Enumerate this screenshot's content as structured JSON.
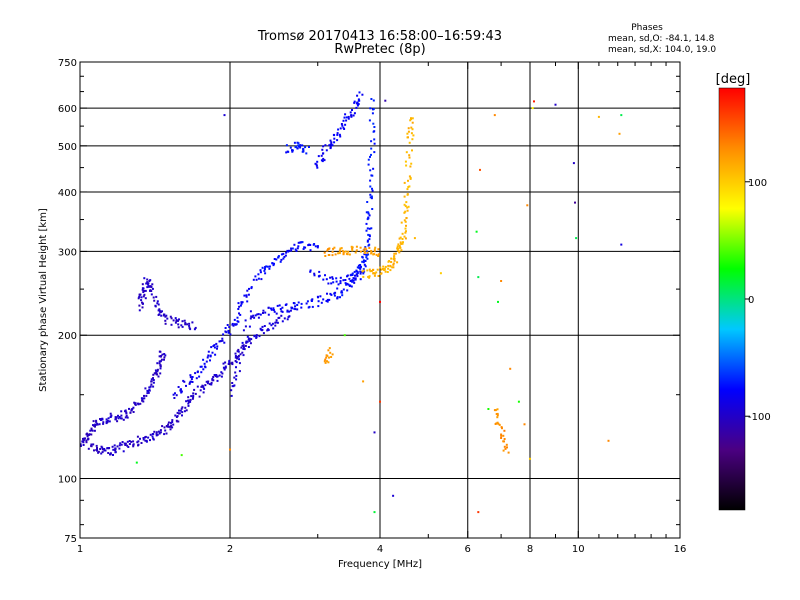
{
  "chart_data": {
    "type": "scatter",
    "title": "Tromsø 20170413 16:58:00–16:59:43",
    "subtitle": "RwPretec (8p)",
    "xlabel": "Frequency [MHz]",
    "ylabel": "Stationary phase Virtual Height [km]",
    "x_scale": "log",
    "y_scale": "log",
    "xlim": [
      1,
      16
    ],
    "ylim": [
      75,
      750
    ],
    "x_ticks": [
      1,
      2,
      4,
      6,
      8,
      10,
      16
    ],
    "y_ticks": [
      75,
      100,
      200,
      300,
      400,
      500,
      600,
      750
    ],
    "x_gridlines": [
      2,
      4,
      6,
      8,
      10
    ],
    "y_gridlines": [
      100,
      200,
      300,
      400,
      500,
      600
    ],
    "grid": true,
    "stats": {
      "heading": "Phases",
      "line_o": "mean, sd,O: -84.1, 14.8",
      "line_x": "mean, sd,X: 104.0, 19.0"
    },
    "colorbar": {
      "label": "[deg]",
      "range": [
        -180,
        180
      ],
      "ticks": [
        100,
        0,
        -100
      ],
      "colors": [
        "#000000",
        "#4b0082",
        "#0000ff",
        "#00c8ff",
        "#00ff00",
        "#ffff00",
        "#ff8c00",
        "#ff0000"
      ]
    },
    "series": [
      {
        "trace": [
          [
            1.0,
            118,
            -100
          ],
          [
            1.03,
            122,
            -105
          ],
          [
            1.06,
            128,
            -102
          ],
          [
            1.1,
            132,
            -100
          ],
          [
            1.15,
            134,
            -98
          ],
          [
            1.2,
            135,
            -100
          ],
          [
            1.26,
            138,
            -102
          ],
          [
            1.32,
            145,
            -100
          ],
          [
            1.38,
            155,
            -98
          ],
          [
            1.42,
            165,
            -100
          ],
          [
            1.45,
            175,
            -103
          ],
          [
            1.47,
            185,
            -100
          ]
        ]
      },
      {
        "trace": [
          [
            1.05,
            116,
            -105
          ],
          [
            1.1,
            115,
            -100
          ],
          [
            1.15,
            114,
            -98
          ],
          [
            1.2,
            116,
            -100
          ],
          [
            1.27,
            119,
            -103
          ],
          [
            1.35,
            121,
            -100
          ],
          [
            1.43,
            124,
            -98
          ],
          [
            1.5,
            128,
            -100
          ],
          [
            1.57,
            134,
            -102
          ],
          [
            1.63,
            142,
            -100
          ],
          [
            1.7,
            150,
            -98
          ],
          [
            1.8,
            158,
            -100
          ],
          [
            1.9,
            165,
            -95
          ],
          [
            2.0,
            175,
            -98
          ],
          [
            2.1,
            185,
            -100
          ],
          [
            2.2,
            195,
            -95
          ],
          [
            2.35,
            205,
            -90
          ],
          [
            2.5,
            215,
            -95
          ],
          [
            2.7,
            228,
            -92
          ]
        ]
      },
      {
        "trace": [
          [
            1.32,
            230,
            -102
          ],
          [
            1.34,
            245,
            -100
          ],
          [
            1.36,
            260,
            -98
          ],
          [
            1.4,
            250,
            -100
          ],
          [
            1.43,
            225,
            -100
          ],
          [
            1.5,
            215,
            -102
          ],
          [
            1.6,
            212,
            -100
          ],
          [
            1.7,
            208,
            -98
          ]
        ]
      },
      {
        "trace": [
          [
            1.55,
            150,
            -90
          ],
          [
            1.65,
            160,
            -85
          ],
          [
            1.75,
            170,
            -80
          ],
          [
            1.85,
            185,
            -82
          ],
          [
            1.95,
            200,
            -85
          ],
          [
            2.05,
            215,
            -80
          ],
          [
            2.15,
            240,
            -82
          ],
          [
            2.3,
            270,
            -78
          ],
          [
            2.45,
            285,
            -75
          ],
          [
            2.6,
            300,
            -80
          ],
          [
            2.8,
            310,
            -75
          ],
          [
            3.0,
            305,
            -80
          ]
        ]
      },
      {
        "trace": [
          [
            2.0,
            150,
            -95
          ],
          [
            2.1,
            180,
            -92
          ],
          [
            2.2,
            220,
            -90
          ],
          [
            2.4,
            225,
            -85
          ],
          [
            2.6,
            228,
            -80
          ],
          [
            2.85,
            232,
            -78
          ],
          [
            3.1,
            238,
            -80
          ],
          [
            3.3,
            245,
            -75
          ],
          [
            3.5,
            258,
            -80
          ],
          [
            3.6,
            268,
            -75
          ],
          [
            3.7,
            285,
            -75
          ],
          [
            3.75,
            300,
            -72
          ],
          [
            3.8,
            340,
            -72
          ],
          [
            3.82,
            400,
            -70
          ],
          [
            3.85,
            500,
            -70
          ],
          [
            3.87,
            640,
            -68
          ]
        ]
      },
      {
        "trace": [
          [
            2.9,
            270,
            -82
          ],
          [
            3.2,
            260,
            -80
          ],
          [
            3.5,
            262,
            -78
          ],
          [
            3.7,
            268,
            -75
          ]
        ]
      },
      {
        "trace": [
          [
            3.7,
            268,
            110
          ],
          [
            3.9,
            270,
            112
          ],
          [
            4.1,
            275,
            110
          ],
          [
            4.25,
            285,
            115
          ],
          [
            4.35,
            300,
            110
          ],
          [
            4.45,
            320,
            112
          ],
          [
            4.5,
            360,
            110
          ],
          [
            4.55,
            420,
            108
          ],
          [
            4.6,
            520,
            110
          ],
          [
            4.62,
            580,
            112
          ]
        ]
      },
      {
        "trace": [
          [
            3.1,
            298,
            125
          ],
          [
            3.3,
            300,
            120
          ],
          [
            3.5,
            302,
            118
          ],
          [
            3.8,
            300,
            120
          ],
          [
            4.0,
            298,
            118
          ]
        ]
      },
      {
        "trace": [
          [
            3.0,
            450,
            -82
          ],
          [
            3.1,
            490,
            -85
          ],
          [
            3.25,
            520,
            -80
          ],
          [
            3.4,
            560,
            -82
          ],
          [
            3.55,
            600,
            -80
          ],
          [
            3.65,
            640,
            -78
          ]
        ]
      },
      {
        "trace": [
          [
            2.6,
            490,
            -75
          ],
          [
            2.75,
            500,
            -72
          ],
          [
            2.85,
            490,
            -75
          ]
        ]
      },
      {
        "trace": [
          [
            3.1,
            175,
            125
          ],
          [
            3.2,
            185,
            122
          ]
        ]
      },
      {
        "trace": [
          [
            6.8,
            140,
            120
          ],
          [
            7.0,
            125,
            130
          ],
          [
            7.2,
            115,
            125
          ]
        ]
      }
    ],
    "outliers": [
      [
        1.95,
        580,
        -95
      ],
      [
        4.1,
        622,
        -110
      ],
      [
        4.0,
        235,
        180
      ],
      [
        4.0,
        145,
        160
      ],
      [
        3.9,
        125,
        -100
      ],
      [
        4.25,
        92,
        -95
      ],
      [
        3.9,
        85,
        15
      ],
      [
        3.7,
        160,
        120
      ],
      [
        3.4,
        200,
        40
      ],
      [
        2.0,
        115,
        130
      ],
      [
        1.3,
        108,
        20
      ],
      [
        1.6,
        112,
        40
      ],
      [
        6.3,
        85,
        160
      ],
      [
        6.25,
        330,
        20
      ],
      [
        6.3,
        265,
        10
      ],
      [
        6.35,
        445,
        150
      ],
      [
        7.0,
        260,
        130
      ],
      [
        6.9,
        235,
        20
      ],
      [
        6.8,
        580,
        130
      ],
      [
        7.3,
        170,
        130
      ],
      [
        7.8,
        130,
        130
      ],
      [
        7.9,
        375,
        130
      ],
      [
        8.15,
        620,
        170
      ],
      [
        8.1,
        600,
        80
      ],
      [
        9.0,
        610,
        -100
      ],
      [
        9.8,
        460,
        -100
      ],
      [
        9.85,
        380,
        -120
      ],
      [
        9.9,
        320,
        10
      ],
      [
        11.0,
        575,
        110
      ],
      [
        11.5,
        120,
        130
      ],
      [
        12.1,
        530,
        120
      ],
      [
        12.2,
        580,
        10
      ],
      [
        12.2,
        310,
        -90
      ],
      [
        7.6,
        145,
        30
      ],
      [
        8.0,
        110,
        100
      ],
      [
        6.6,
        140,
        30
      ],
      [
        5.3,
        270,
        100
      ],
      [
        4.7,
        320,
        110
      ]
    ]
  }
}
